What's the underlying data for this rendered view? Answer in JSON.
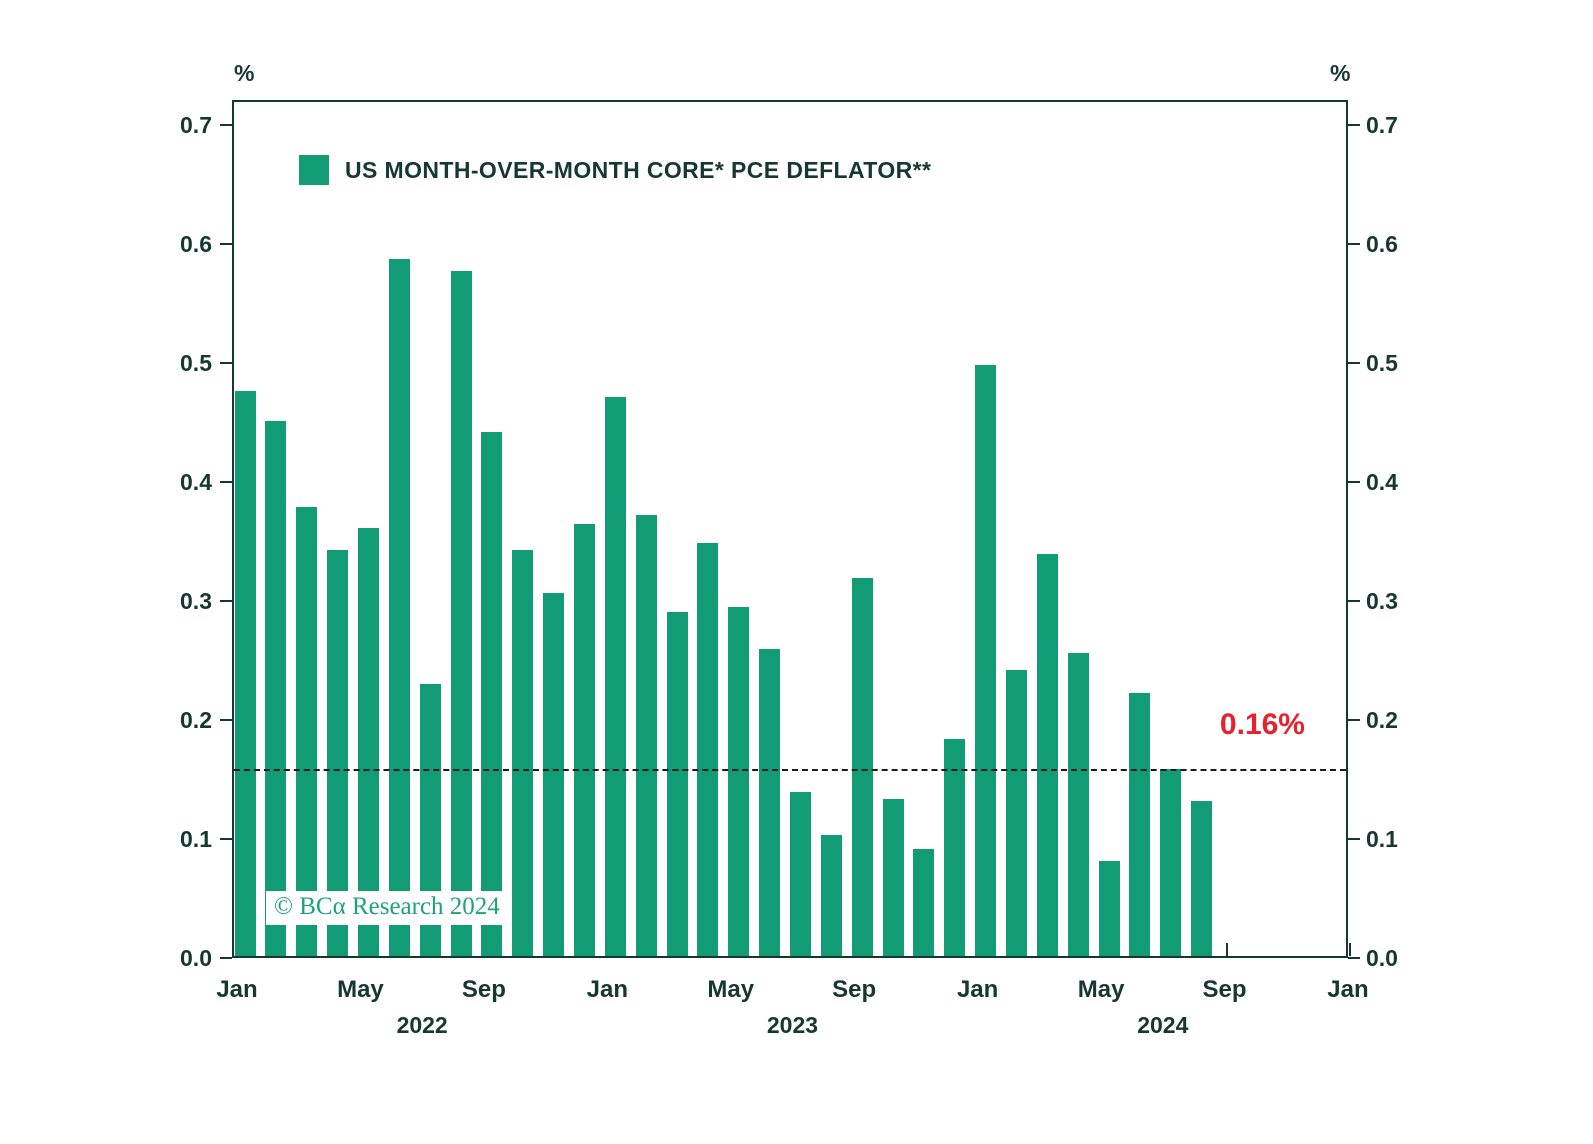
{
  "chart_data": {
    "type": "bar",
    "legend_label": "US MONTH-OVER-MONTH CORE* PCE DEFLATOR**",
    "unit": "%",
    "bar_color": "#119C76",
    "axis_color": "#17382F",
    "ylim": [
      0.0,
      0.7
    ],
    "yticks": [
      0.0,
      0.1,
      0.2,
      0.3,
      0.4,
      0.5,
      0.6,
      0.7
    ],
    "months": [
      "Jan 2022",
      "Feb 2022",
      "Mar 2022",
      "Apr 2022",
      "May 2022",
      "Jun 2022",
      "Jul 2022",
      "Aug 2022",
      "Sep 2022",
      "Oct 2022",
      "Nov 2022",
      "Dec 2022",
      "Jan 2023",
      "Feb 2023",
      "Mar 2023",
      "Apr 2023",
      "May 2023",
      "Jun 2023",
      "Jul 2023",
      "Aug 2023",
      "Sep 2023",
      "Oct 2023",
      "Nov 2023",
      "Dec 2023",
      "Jan 2024",
      "Feb 2024",
      "Mar 2024",
      "Apr 2024",
      "May 2024",
      "Jun 2024",
      "Jul 2024",
      "Aug 2024"
    ],
    "values": [
      0.475,
      0.45,
      0.377,
      0.341,
      0.36,
      0.586,
      0.229,
      0.576,
      0.44,
      0.341,
      0.305,
      0.363,
      0.47,
      0.371,
      0.289,
      0.347,
      0.293,
      0.258,
      0.138,
      0.102,
      0.318,
      0.132,
      0.09,
      0.182,
      0.497,
      0.24,
      0.338,
      0.255,
      0.08,
      0.221,
      0.157,
      0.13
    ],
    "xticks": [
      {
        "label": "Jan",
        "month_index": 0
      },
      {
        "label": "May",
        "month_index": 4
      },
      {
        "label": "Sep",
        "month_index": 8
      },
      {
        "label": "Jan",
        "month_index": 12
      },
      {
        "label": "May",
        "month_index": 16
      },
      {
        "label": "Sep",
        "month_index": 20
      },
      {
        "label": "Jan",
        "month_index": 24
      },
      {
        "label": "May",
        "month_index": 28
      },
      {
        "label": "Sep",
        "month_index": 32
      },
      {
        "label": "Jan",
        "month_index": 36
      }
    ],
    "year_labels": [
      {
        "label": "2022",
        "month_index": 6
      },
      {
        "label": "2023",
        "month_index": 18
      },
      {
        "label": "2024",
        "month_index": 30
      }
    ],
    "reference_line": {
      "value": 0.16,
      "label": "0.16%",
      "color": "#E8212E"
    },
    "copyright": "© BCα Research 2024"
  }
}
